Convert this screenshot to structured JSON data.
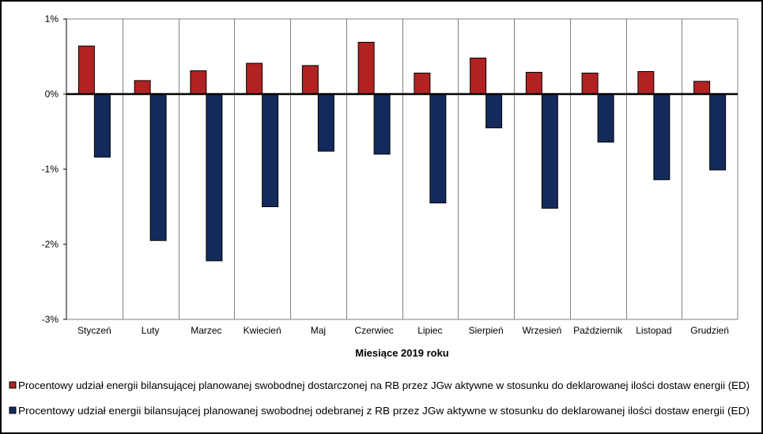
{
  "chart_data": {
    "type": "bar",
    "categories": [
      "Styczeń",
      "Luty",
      "Marzec",
      "Kwiecień",
      "Maj",
      "Czerwiec",
      "Lipiec",
      "Sierpień",
      "Wrzesień",
      "Październik",
      "Listopad",
      "Grudzień"
    ],
    "series": [
      {
        "name": "Procentowy udział energii bilansującej planowanej swobodnej dostarczonej na RB przez JGw aktywne w stosunku do deklarowanej ilości dostaw energii (ED)",
        "color": "#b22222",
        "values": [
          0.64,
          0.18,
          0.31,
          0.41,
          0.38,
          0.69,
          0.28,
          0.48,
          0.29,
          0.28,
          0.3,
          0.17
        ]
      },
      {
        "name": "Procentowy udział energii bilansującej planowanej swobodnej odebranej z RB przez JGw aktywne w stosunku do deklarowanej ilości dostaw energii (ED)",
        "color": "#152a5c",
        "values": [
          -0.84,
          -1.95,
          -2.22,
          -1.5,
          -0.76,
          -0.8,
          -1.45,
          -0.45,
          -1.52,
          -0.64,
          -1.14,
          -1.01
        ]
      }
    ],
    "xlabel": "Miesiące 2019  roku",
    "ylabel": "",
    "ylim": [
      -3,
      1
    ],
    "yticks": [
      1,
      0,
      -1,
      -2,
      -3
    ],
    "ytick_labels": [
      "1%",
      "0%",
      "-1%",
      "-2%",
      "-3%"
    ],
    "grid": "vertical",
    "legend": "bottom"
  }
}
